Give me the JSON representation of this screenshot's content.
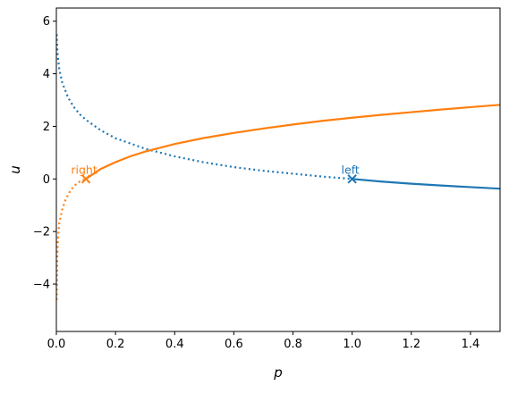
{
  "chart_data": {
    "type": "line",
    "title": "",
    "xlabel": "p",
    "ylabel": "u",
    "xlim": [
      0,
      1.5
    ],
    "ylim": [
      -5.8,
      6.5
    ],
    "xticks": [
      "0.0",
      "0.2",
      "0.4",
      "0.6",
      "0.8",
      "1.0",
      "1.2",
      "1.4"
    ],
    "yticks": [
      "−4",
      "−2",
      "0",
      "2",
      "4",
      "6"
    ],
    "grid": false,
    "legend": "none",
    "series": [
      {
        "color": "#1f77b4",
        "segments": [
          {
            "style": "dotted",
            "points": [
              [
                0.001,
                5.5
              ],
              [
                0.003,
                4.95
              ],
              [
                0.005,
                4.64
              ],
              [
                0.01,
                4.16
              ],
              [
                0.02,
                3.66
              ],
              [
                0.04,
                3.09
              ],
              [
                0.06,
                2.72
              ],
              [
                0.08,
                2.45
              ],
              [
                0.1,
                2.25
              ],
              [
                0.15,
                1.85
              ],
              [
                0.2,
                1.55
              ],
              [
                0.3,
                1.15
              ],
              [
                0.4,
                0.86
              ],
              [
                0.5,
                0.63
              ],
              [
                0.6,
                0.45
              ],
              [
                0.7,
                0.31
              ],
              [
                0.8,
                0.2
              ],
              [
                0.9,
                0.09
              ],
              [
                1.0,
                0.0
              ]
            ]
          },
          {
            "style": "solid",
            "points": [
              [
                1.0,
                0.0
              ],
              [
                1.1,
                -0.1
              ],
              [
                1.2,
                -0.18
              ],
              [
                1.3,
                -0.25
              ],
              [
                1.4,
                -0.31
              ],
              [
                1.5,
                -0.37
              ]
            ]
          }
        ]
      },
      {
        "color": "#ff7f0e",
        "segments": [
          {
            "style": "dotted",
            "points": [
              [
                0.001,
                -4.6
              ],
              [
                0.003,
                -3.0
              ],
              [
                0.005,
                -2.3
              ],
              [
                0.01,
                -1.67
              ],
              [
                0.02,
                -1.15
              ],
              [
                0.03,
                -0.82
              ],
              [
                0.04,
                -0.58
              ],
              [
                0.05,
                -0.41
              ],
              [
                0.06,
                -0.27
              ],
              [
                0.07,
                -0.17
              ],
              [
                0.08,
                -0.09
              ],
              [
                0.09,
                -0.04
              ],
              [
                0.1,
                0.0
              ]
            ]
          },
          {
            "style": "solid",
            "points": [
              [
                0.1,
                0.0
              ],
              [
                0.15,
                0.38
              ],
              [
                0.2,
                0.64
              ],
              [
                0.25,
                0.86
              ],
              [
                0.3,
                1.04
              ],
              [
                0.4,
                1.33
              ],
              [
                0.5,
                1.56
              ],
              [
                0.6,
                1.75
              ],
              [
                0.7,
                1.92
              ],
              [
                0.8,
                2.07
              ],
              [
                0.9,
                2.21
              ],
              [
                1.0,
                2.33
              ],
              [
                1.1,
                2.44
              ],
              [
                1.2,
                2.54
              ],
              [
                1.3,
                2.64
              ],
              [
                1.4,
                2.73
              ],
              [
                1.5,
                2.82
              ]
            ]
          }
        ]
      }
    ],
    "markers": [
      {
        "x": 1.0,
        "y": 0.0,
        "label": "left",
        "color": "#1f77b4"
      },
      {
        "x": 0.1,
        "y": 0.0,
        "label": "right",
        "color": "#ff7f0e"
      }
    ]
  }
}
